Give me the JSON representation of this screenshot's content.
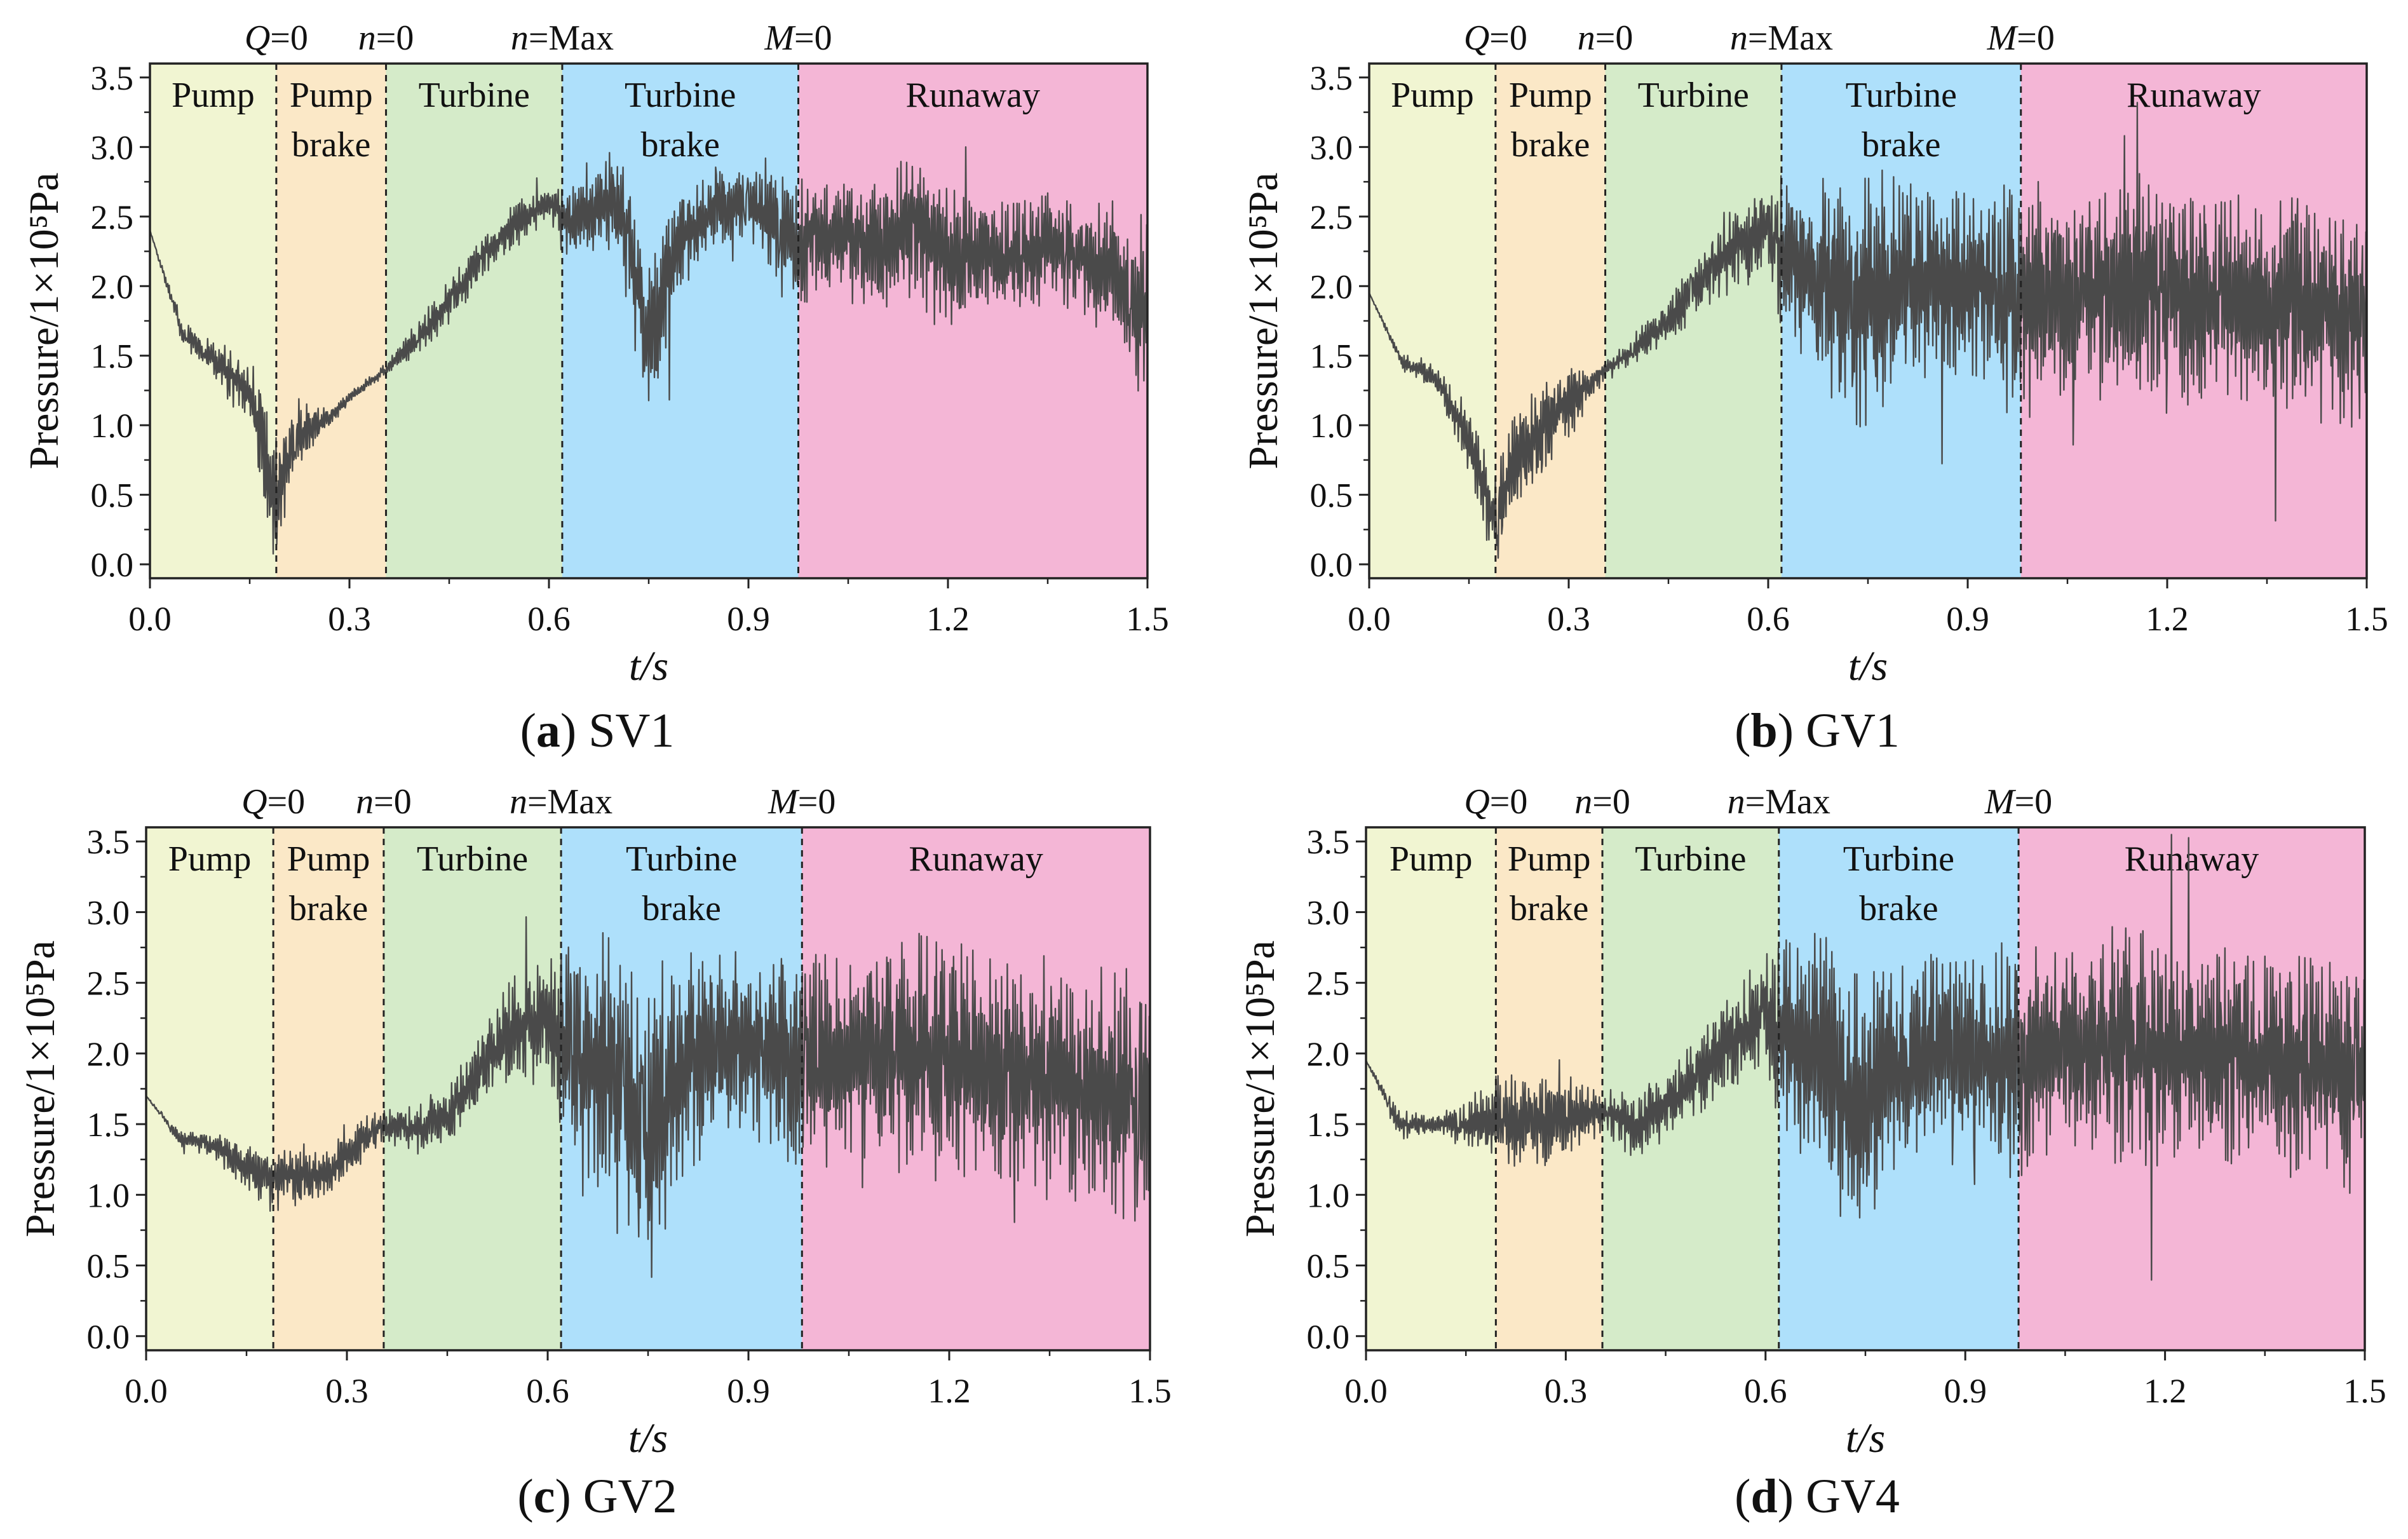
{
  "figure": {
    "colors": {
      "Pump": "#f1f5d2",
      "Pump brake": "#fbe8c7",
      "Turbine": "#d5ebc9",
      "Turbine brake": "#aee0fb",
      "Runaway": "#f4b6d6",
      "line": "#4a4a4a",
      "axis": "#222222"
    }
  },
  "chart_data": [
    {
      "id": "a",
      "type": "line",
      "caption_letter": "a",
      "caption_name": "SV1",
      "xlabel": "t/s",
      "ylabel": "Pressure/1×10⁵Pa",
      "xlim": [
        0,
        1.5
      ],
      "ylim": [
        -0.1,
        3.6
      ],
      "xticks": [
        "0.0",
        "0.3",
        "0.6",
        "0.9",
        "1.2",
        "1.5"
      ],
      "yticks": [
        "0.0",
        "0.5",
        "1.0",
        "1.5",
        "2.0",
        "2.5",
        "3.0",
        "3.5"
      ],
      "boundaries": [
        0.19,
        0.355,
        0.62,
        0.975
      ],
      "top_labels": [
        {
          "t": 0.19,
          "var": "Q",
          "val": "=0"
        },
        {
          "t": 0.355,
          "var": "n",
          "val": "=0"
        },
        {
          "t": 0.62,
          "var": "n",
          "val": "=Max"
        },
        {
          "t": 0.975,
          "var": "M",
          "val": "=0"
        }
      ],
      "regions": [
        {
          "name": "Pump",
          "lines": [
            "Pump"
          ],
          "start": 0,
          "end": 0.19
        },
        {
          "name": "Pump brake",
          "lines": [
            "Pump",
            "brake"
          ],
          "start": 0.19,
          "end": 0.355
        },
        {
          "name": "Turbine",
          "lines": [
            "Turbine"
          ],
          "start": 0.355,
          "end": 0.62
        },
        {
          "name": "Turbine brake",
          "lines": [
            "Turbine",
            "brake"
          ],
          "start": 0.62,
          "end": 0.975
        },
        {
          "name": "Runaway",
          "lines": [
            "Runaway"
          ],
          "start": 0.975,
          "end": 1.5
        }
      ],
      "series": [
        {
          "name": "SV1",
          "x": [
            0,
            0.05,
            0.1,
            0.15,
            0.19,
            0.22,
            0.27,
            0.3,
            0.355,
            0.4,
            0.45,
            0.5,
            0.55,
            0.6,
            0.62,
            0.65,
            0.7,
            0.72,
            0.75,
            0.77,
            0.8,
            0.85,
            0.9,
            0.95,
            0.975,
            1.0,
            1.05,
            1.1,
            1.15,
            1.2,
            1.25,
            1.3,
            1.35,
            1.4,
            1.45,
            1.5
          ],
          "y": [
            2.4,
            1.65,
            1.45,
            1.25,
            0.4,
            0.95,
            1.05,
            1.2,
            1.4,
            1.6,
            1.9,
            2.2,
            2.45,
            2.6,
            2.5,
            2.55,
            2.6,
            2.35,
            1.6,
            1.85,
            2.35,
            2.55,
            2.6,
            2.4,
            2.25,
            2.35,
            2.35,
            2.3,
            2.45,
            2.2,
            2.25,
            2.2,
            2.3,
            2.2,
            2.1,
            1.8
          ],
          "amplitude": [
            0,
            0.08,
            0.12,
            0.25,
            0.45,
            0.25,
            0.05,
            0.04,
            0.04,
            0.12,
            0.15,
            0.15,
            0.15,
            0.1,
            0.25,
            0.3,
            0.35,
            0.5,
            0.5,
            0.5,
            0.3,
            0.25,
            0.2,
            0.4,
            0.45,
            0.4,
            0.4,
            0.45,
            0.5,
            0.5,
            0.35,
            0.35,
            0.35,
            0.4,
            0.45,
            0.6
          ]
        }
      ]
    },
    {
      "id": "b",
      "type": "line",
      "caption_letter": "b",
      "caption_name": "GV1",
      "xlabel": "t/s",
      "ylabel": "Pressure/1×10⁵Pa",
      "xlim": [
        0,
        1.5
      ],
      "ylim": [
        -0.1,
        3.6
      ],
      "xticks": [
        "0.0",
        "0.3",
        "0.6",
        "0.9",
        "1.2",
        "1.5"
      ],
      "yticks": [
        "0.0",
        "0.5",
        "1.0",
        "1.5",
        "2.0",
        "2.5",
        "3.0",
        "3.5"
      ],
      "boundaries": [
        0.19,
        0.355,
        0.62,
        0.98
      ],
      "top_labels": [
        {
          "t": 0.19,
          "var": "Q",
          "val": "=0"
        },
        {
          "t": 0.355,
          "var": "n",
          "val": "=0"
        },
        {
          "t": 0.62,
          "var": "n",
          "val": "=Max"
        },
        {
          "t": 0.98,
          "var": "M",
          "val": "=0"
        }
      ],
      "regions": [
        {
          "name": "Pump",
          "lines": [
            "Pump"
          ],
          "start": 0,
          "end": 0.19
        },
        {
          "name": "Pump brake",
          "lines": [
            "Pump",
            "brake"
          ],
          "start": 0.19,
          "end": 0.355
        },
        {
          "name": "Turbine",
          "lines": [
            "Turbine"
          ],
          "start": 0.355,
          "end": 0.62
        },
        {
          "name": "Turbine brake",
          "lines": [
            "Turbine",
            "brake"
          ],
          "start": 0.62,
          "end": 0.98
        },
        {
          "name": "Runaway",
          "lines": [
            "Runaway"
          ],
          "start": 0.98,
          "end": 1.5
        }
      ],
      "series": [
        {
          "name": "GV1",
          "x": [
            0,
            0.05,
            0.1,
            0.15,
            0.19,
            0.22,
            0.27,
            0.3,
            0.355,
            0.4,
            0.45,
            0.5,
            0.55,
            0.6,
            0.62,
            0.65,
            0.7,
            0.73,
            0.76,
            0.8,
            0.85,
            0.9,
            0.95,
            0.98,
            1.0,
            1.05,
            1.1,
            1.15,
            1.2,
            1.25,
            1.3,
            1.35,
            1.4,
            1.45,
            1.5
          ],
          "y": [
            1.95,
            1.45,
            1.35,
            0.9,
            0.3,
            0.75,
            1.05,
            1.15,
            1.4,
            1.55,
            1.75,
            2.05,
            2.3,
            2.45,
            2.2,
            2.15,
            2.0,
            1.85,
            1.9,
            2.05,
            2.05,
            2.0,
            1.95,
            1.9,
            1.9,
            1.95,
            1.95,
            2.0,
            1.95,
            1.9,
            1.9,
            1.9,
            1.85,
            1.8,
            1.75
          ],
          "amplitude": [
            0,
            0.05,
            0.1,
            0.25,
            0.3,
            0.35,
            0.3,
            0.25,
            0.05,
            0.1,
            0.15,
            0.2,
            0.3,
            0.25,
            0.6,
            0.6,
            0.7,
            0.85,
            0.8,
            0.65,
            0.6,
            0.6,
            0.7,
            0.75,
            0.75,
            0.65,
            0.7,
            0.75,
            0.7,
            0.7,
            0.65,
            0.7,
            0.75,
            0.7,
            0.75
          ]
        }
      ]
    },
    {
      "id": "c",
      "type": "line",
      "caption_letter": "c",
      "caption_name": "GV2",
      "xlabel": "t/s",
      "ylabel": "Pressure/1×10⁵Pa",
      "xlim": [
        0,
        1.5
      ],
      "ylim": [
        -0.1,
        3.6
      ],
      "xticks": [
        "0.0",
        "0.3",
        "0.6",
        "0.9",
        "1.2",
        "1.5"
      ],
      "yticks": [
        "0.0",
        "0.5",
        "1.0",
        "1.5",
        "2.0",
        "2.5",
        "3.0",
        "3.5"
      ],
      "boundaries": [
        0.19,
        0.355,
        0.62,
        0.98
      ],
      "top_labels": [
        {
          "t": 0.19,
          "var": "Q",
          "val": "=0"
        },
        {
          "t": 0.355,
          "var": "n",
          "val": "=0"
        },
        {
          "t": 0.62,
          "var": "n",
          "val": "=Max"
        },
        {
          "t": 0.98,
          "var": "M",
          "val": "=0"
        }
      ],
      "regions": [
        {
          "name": "Pump",
          "lines": [
            "Pump"
          ],
          "start": 0,
          "end": 0.19
        },
        {
          "name": "Pump brake",
          "lines": [
            "Pump",
            "brake"
          ],
          "start": 0.19,
          "end": 0.355
        },
        {
          "name": "Turbine",
          "lines": [
            "Turbine"
          ],
          "start": 0.355,
          "end": 0.62
        },
        {
          "name": "Turbine brake",
          "lines": [
            "Turbine",
            "brake"
          ],
          "start": 0.62,
          "end": 0.98
        },
        {
          "name": "Runaway",
          "lines": [
            "Runaway"
          ],
          "start": 0.98,
          "end": 1.5
        }
      ],
      "series": [
        {
          "name": "GV2",
          "x": [
            0,
            0.05,
            0.1,
            0.15,
            0.19,
            0.22,
            0.27,
            0.3,
            0.355,
            0.4,
            0.45,
            0.5,
            0.55,
            0.6,
            0.62,
            0.65,
            0.7,
            0.74,
            0.77,
            0.8,
            0.85,
            0.9,
            0.95,
            0.98,
            1.0,
            1.05,
            1.1,
            1.15,
            1.2,
            1.25,
            1.3,
            1.35,
            1.4,
            1.45,
            1.5
          ],
          "y": [
            1.7,
            1.4,
            1.35,
            1.2,
            1.1,
            1.15,
            1.15,
            1.3,
            1.5,
            1.45,
            1.55,
            1.9,
            2.15,
            2.3,
            1.95,
            1.95,
            1.8,
            1.3,
            1.6,
            1.9,
            2.05,
            2.1,
            2.0,
            1.9,
            1.95,
            2.0,
            2.0,
            2.0,
            1.95,
            1.85,
            1.85,
            1.8,
            1.8,
            1.7,
            1.6
          ],
          "amplitude": [
            0,
            0.05,
            0.08,
            0.15,
            0.2,
            0.2,
            0.15,
            0.2,
            0.1,
            0.15,
            0.2,
            0.25,
            0.35,
            0.35,
            0.7,
            0.8,
            0.9,
            1.0,
            0.9,
            0.7,
            0.55,
            0.55,
            0.7,
            0.8,
            0.7,
            0.65,
            0.7,
            0.75,
            0.75,
            0.7,
            0.7,
            0.75,
            0.75,
            0.8,
            0.8
          ]
        }
      ]
    },
    {
      "id": "d",
      "type": "line",
      "caption_letter": "d",
      "caption_name": "GV4",
      "xlabel": "t/s",
      "ylabel": "Pressure/1×10⁵Pa",
      "xlim": [
        0,
        1.5
      ],
      "ylim": [
        -0.1,
        3.6
      ],
      "xticks": [
        "0.0",
        "0.3",
        "0.6",
        "0.9",
        "1.2",
        "1.5"
      ],
      "yticks": [
        "0.0",
        "0.5",
        "1.0",
        "1.5",
        "2.0",
        "2.5",
        "3.0",
        "3.5"
      ],
      "boundaries": [
        0.195,
        0.355,
        0.62,
        0.98
      ],
      "top_labels": [
        {
          "t": 0.195,
          "var": "Q",
          "val": "=0"
        },
        {
          "t": 0.355,
          "var": "n",
          "val": "=0"
        },
        {
          "t": 0.62,
          "var": "n",
          "val": "=Max"
        },
        {
          "t": 0.98,
          "var": "M",
          "val": "=0"
        }
      ],
      "regions": [
        {
          "name": "Pump",
          "lines": [
            "Pump"
          ],
          "start": 0,
          "end": 0.195
        },
        {
          "name": "Pump brake",
          "lines": [
            "Pump",
            "brake"
          ],
          "start": 0.195,
          "end": 0.355
        },
        {
          "name": "Turbine",
          "lines": [
            "Turbine"
          ],
          "start": 0.355,
          "end": 0.62
        },
        {
          "name": "Turbine brake",
          "lines": [
            "Turbine",
            "brake"
          ],
          "start": 0.62,
          "end": 0.98
        },
        {
          "name": "Runaway",
          "lines": [
            "Runaway"
          ],
          "start": 0.98,
          "end": 1.5
        }
      ],
      "series": [
        {
          "name": "GV4",
          "x": [
            0,
            0.05,
            0.1,
            0.15,
            0.195,
            0.25,
            0.3,
            0.355,
            0.4,
            0.45,
            0.5,
            0.55,
            0.6,
            0.62,
            0.65,
            0.7,
            0.73,
            0.76,
            0.8,
            0.85,
            0.9,
            0.95,
            0.98,
            1.0,
            1.05,
            1.1,
            1.15,
            1.2,
            1.25,
            1.3,
            1.35,
            1.4,
            1.45,
            1.5
          ],
          "y": [
            1.95,
            1.5,
            1.5,
            1.5,
            1.55,
            1.5,
            1.55,
            1.6,
            1.5,
            1.6,
            1.85,
            2.1,
            2.3,
            2.1,
            2.05,
            1.9,
            1.5,
            1.7,
            1.95,
            2.05,
            2.0,
            1.95,
            1.9,
            2.0,
            2.05,
            2.05,
            2.1,
            2.0,
            1.95,
            2.0,
            1.95,
            1.9,
            1.85,
            1.8
          ],
          "amplitude": [
            0,
            0.1,
            0.05,
            0.15,
            0.25,
            0.35,
            0.3,
            0.15,
            0.2,
            0.2,
            0.25,
            0.35,
            0.35,
            0.6,
            0.7,
            0.8,
            0.95,
            0.85,
            0.7,
            0.6,
            0.6,
            0.7,
            0.8,
            0.7,
            0.65,
            0.7,
            0.75,
            0.7,
            0.65,
            0.7,
            0.7,
            0.7,
            0.7,
            0.75
          ]
        }
      ]
    }
  ]
}
